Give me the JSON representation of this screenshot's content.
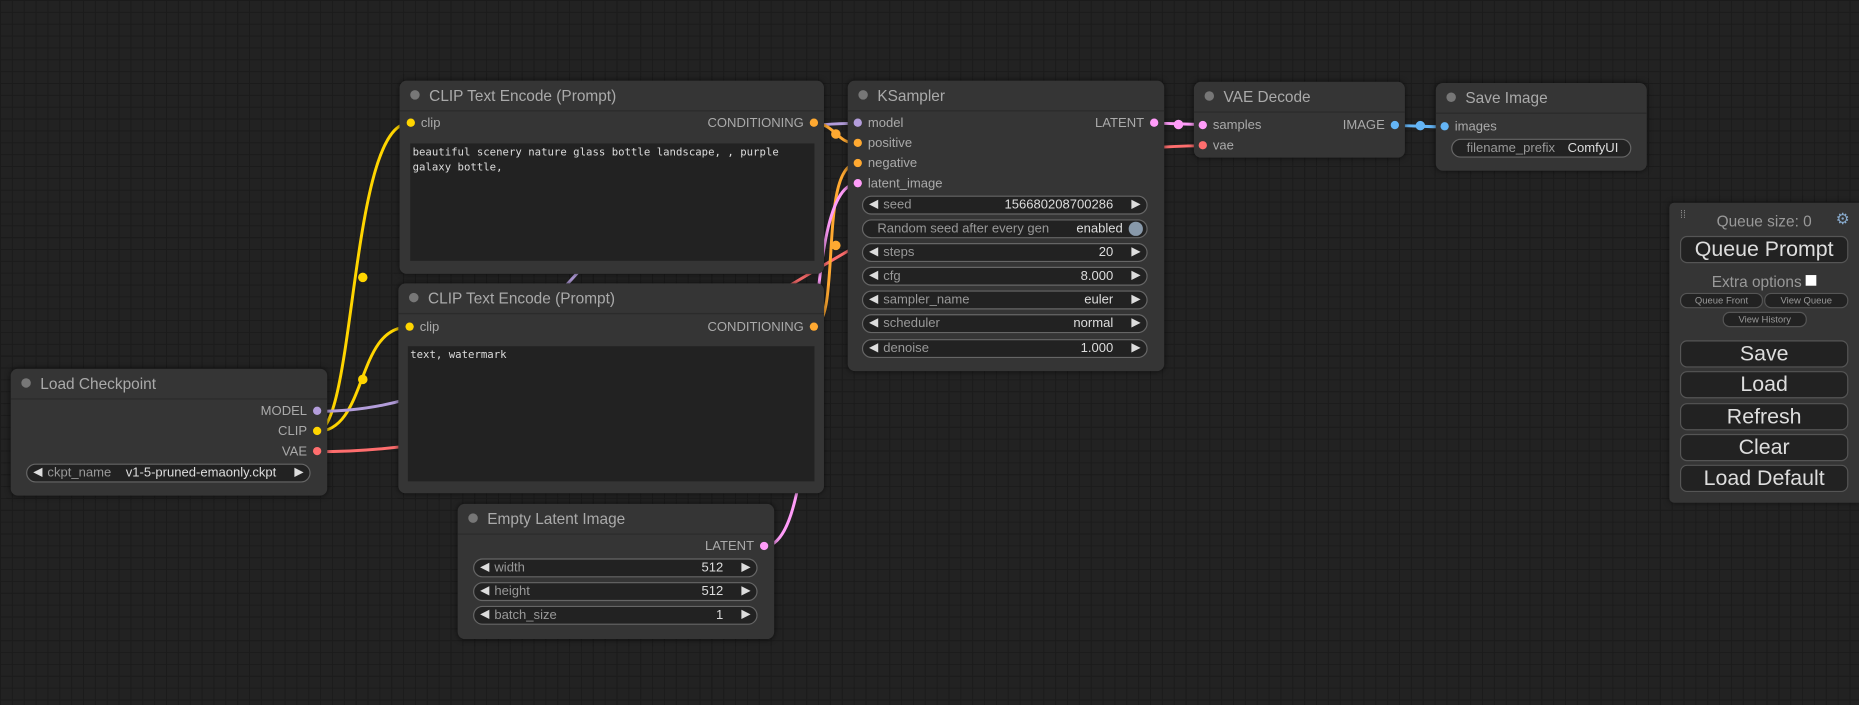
{
  "colors": {
    "clip": "#ffd500",
    "model": "#b39ddb",
    "vae": "#ff6e6e",
    "conditioning": "#ffa931",
    "latent": "#ff9cf9",
    "image": "#64b5f6"
  },
  "nodes": {
    "clip_pos": {
      "title": "CLIP Text Encode (Prompt)",
      "input": "clip",
      "output": "CONDITIONING",
      "text": "beautiful scenery nature glass bottle landscape, , purple galaxy bottle,"
    },
    "clip_neg": {
      "title": "CLIP Text Encode (Prompt)",
      "input": "clip",
      "output": "CONDITIONING",
      "text": "text, watermark"
    },
    "checkpoint": {
      "title": "Load Checkpoint",
      "outputs": [
        "MODEL",
        "CLIP",
        "VAE"
      ],
      "ckpt_label": "ckpt_name",
      "ckpt_value": "v1-5-pruned-emaonly.ckpt"
    },
    "latent": {
      "title": "Empty Latent Image",
      "output": "LATENT",
      "widgets": [
        {
          "label": "width",
          "value": "512"
        },
        {
          "label": "height",
          "value": "512"
        },
        {
          "label": "batch_size",
          "value": "1"
        }
      ]
    },
    "ksampler": {
      "title": "KSampler",
      "inputs": [
        "model",
        "positive",
        "negative",
        "latent_image"
      ],
      "output": "LATENT",
      "seed": {
        "label": "seed",
        "value": "156680208700286"
      },
      "random_seed": {
        "label": "Random seed after every gen",
        "value": "enabled"
      },
      "widgets": [
        {
          "label": "steps",
          "value": "20"
        },
        {
          "label": "cfg",
          "value": "8.000"
        },
        {
          "label": "sampler_name",
          "value": "euler"
        },
        {
          "label": "scheduler",
          "value": "normal"
        },
        {
          "label": "denoise",
          "value": "1.000"
        }
      ]
    },
    "vae_decode": {
      "title": "VAE Decode",
      "inputs": [
        "samples",
        "vae"
      ],
      "output": "IMAGE"
    },
    "save_image": {
      "title": "Save Image",
      "input": "images",
      "prefix_label": "filename_prefix",
      "prefix_value": "ComfyUI"
    }
  },
  "panel": {
    "queue_size": "Queue size: 0",
    "queue_prompt": "Queue Prompt",
    "extra_options": "Extra options",
    "extra_checked": false,
    "queue_front": "Queue Front",
    "view_queue": "View Queue",
    "view_history": "View History",
    "save": "Save",
    "load": "Load",
    "refresh": "Refresh",
    "clear": "Clear",
    "load_default": "Load Default",
    "icons": [
      "drag-handle-icon",
      "gear-icon"
    ]
  }
}
